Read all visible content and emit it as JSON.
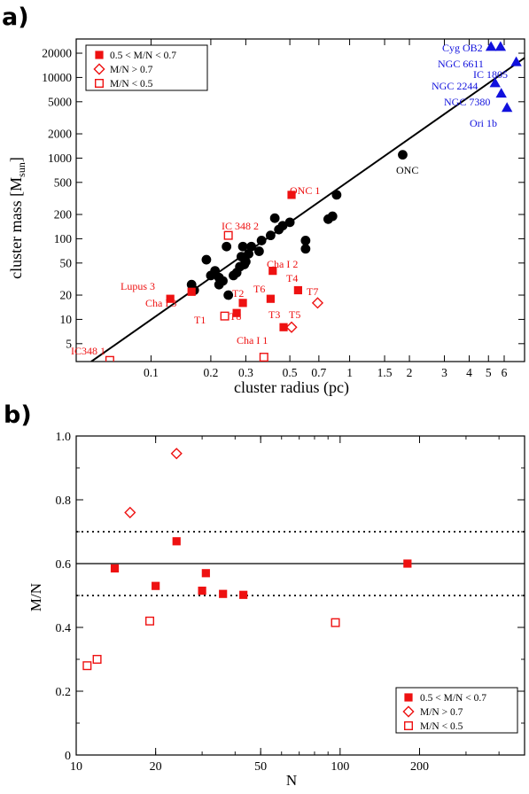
{
  "panels": {
    "a": "a)",
    "b": "b)"
  },
  "colors": {
    "red": "#ee1111",
    "blue": "#1111dd",
    "black": "#000000"
  },
  "chart_data": [
    {
      "type": "scatter",
      "panel": "a)",
      "xlabel": "cluster radius (pc)",
      "ylabel": "cluster mass [M",
      "ylabel_sub": "sun",
      "ylabel_end": "]",
      "xscale": "log",
      "yscale": "log",
      "xlim": [
        0.042,
        7.6
      ],
      "ylim": [
        3.0,
        30000
      ],
      "xticks": [
        0.1,
        0.2,
        0.3,
        0.5,
        0.7,
        1,
        1.5,
        2,
        3,
        4,
        5,
        6
      ],
      "xticklabels": [
        "0.1",
        "0.2",
        "0.3",
        "0.5",
        "0.7",
        "1",
        "1.5",
        "2",
        "3",
        "4",
        "5",
        "6"
      ],
      "yticks": [
        5,
        10,
        20,
        50,
        100,
        200,
        500,
        1000,
        2000,
        5000,
        10000,
        20000
      ],
      "yticklabels": [
        "5",
        "10",
        "20",
        "50",
        "100",
        "200",
        "500",
        "1000",
        "2000",
        "5000",
        "10000",
        "20000"
      ],
      "legend": {
        "position": "top-left",
        "entries": [
          {
            "label": "0.5 < M/N < 0.7",
            "marker": "filled-square"
          },
          {
            "label": "M/N > 0.7",
            "marker": "open-diamond"
          },
          {
            "label": "M/N < 0.5",
            "marker": "open-square"
          }
        ]
      },
      "fit_line": {
        "x": [
          0.05,
          7.6
        ],
        "y": [
          3.0,
          17500
        ]
      },
      "series": [
        {
          "marker": "filled-circle",
          "color": "black",
          "points": [
            {
              "x": 0.16,
              "y": 27
            },
            {
              "x": 0.165,
              "y": 23
            },
            {
              "x": 0.19,
              "y": 55
            },
            {
              "x": 0.2,
              "y": 35
            },
            {
              "x": 0.21,
              "y": 40
            },
            {
              "x": 0.22,
              "y": 33
            },
            {
              "x": 0.22,
              "y": 27
            },
            {
              "x": 0.23,
              "y": 30
            },
            {
              "x": 0.24,
              "y": 80
            },
            {
              "x": 0.245,
              "y": 20
            },
            {
              "x": 0.26,
              "y": 35
            },
            {
              "x": 0.27,
              "y": 38
            },
            {
              "x": 0.28,
              "y": 45
            },
            {
              "x": 0.285,
              "y": 60
            },
            {
              "x": 0.29,
              "y": 80
            },
            {
              "x": 0.295,
              "y": 48
            },
            {
              "x": 0.3,
              "y": 52
            },
            {
              "x": 0.31,
              "y": 65
            },
            {
              "x": 0.32,
              "y": 80
            },
            {
              "x": 0.35,
              "y": 70
            },
            {
              "x": 0.36,
              "y": 95
            },
            {
              "x": 0.4,
              "y": 110
            },
            {
              "x": 0.42,
              "y": 180
            },
            {
              "x": 0.44,
              "y": 130
            },
            {
              "x": 0.46,
              "y": 145
            },
            {
              "x": 0.5,
              "y": 160
            },
            {
              "x": 0.6,
              "y": 95
            },
            {
              "x": 0.6,
              "y": 75
            },
            {
              "x": 0.78,
              "y": 175
            },
            {
              "x": 0.82,
              "y": 190
            },
            {
              "x": 0.86,
              "y": 350
            },
            {
              "x": 1.85,
              "y": 1100
            }
          ]
        },
        {
          "marker": "filled-square",
          "color": "red",
          "points": [
            {
              "x": 0.125,
              "y": 18
            },
            {
              "x": 0.16,
              "y": 22
            },
            {
              "x": 0.27,
              "y": 12
            },
            {
              "x": 0.29,
              "y": 16
            },
            {
              "x": 0.4,
              "y": 18
            },
            {
              "x": 0.41,
              "y": 40
            },
            {
              "x": 0.465,
              "y": 8
            },
            {
              "x": 0.51,
              "y": 350
            },
            {
              "x": 0.55,
              "y": 23
            }
          ]
        },
        {
          "marker": "open-diamond",
          "color": "red",
          "points": [
            {
              "x": 0.51,
              "y": 8
            },
            {
              "x": 0.69,
              "y": 16
            }
          ]
        },
        {
          "marker": "open-square",
          "color": "red",
          "points": [
            {
              "x": 0.062,
              "y": 3.1
            },
            {
              "x": 0.235,
              "y": 11
            },
            {
              "x": 0.245,
              "y": 110
            },
            {
              "x": 0.37,
              "y": 3.4
            }
          ]
        },
        {
          "marker": "filled-triangle",
          "color": "blue",
          "points": [
            {
              "x": 5.15,
              "y": 24000
            },
            {
              "x": 5.75,
              "y": 24000
            },
            {
              "x": 6.9,
              "y": 15500
            },
            {
              "x": 5.4,
              "y": 8500
            },
            {
              "x": 5.8,
              "y": 6300
            },
            {
              "x": 6.2,
              "y": 4200
            }
          ]
        }
      ],
      "annotations": [
        {
          "text": "ONC",
          "color": "black"
        },
        {
          "text": "ONC 1",
          "color": "red"
        },
        {
          "text": "IC 348 2",
          "color": "red"
        },
        {
          "text": "Lupus 3",
          "color": "red"
        },
        {
          "text": "Cha I 3",
          "color": "red"
        },
        {
          "text": "Cha I 2",
          "color": "red"
        },
        {
          "text": "T1",
          "color": "red"
        },
        {
          "text": "T2",
          "color": "red"
        },
        {
          "text": "T8",
          "color": "red"
        },
        {
          "text": "T6",
          "color": "red"
        },
        {
          "text": "T4",
          "color": "red"
        },
        {
          "text": "T7",
          "color": "red"
        },
        {
          "text": "T3",
          "color": "red"
        },
        {
          "text": "T5",
          "color": "red"
        },
        {
          "text": "Cha I 1",
          "color": "red"
        },
        {
          "text": "IC348 1",
          "color": "red"
        },
        {
          "text": "Cyg OB2",
          "color": "blue"
        },
        {
          "text": "NGC 6611",
          "color": "blue"
        },
        {
          "text": "IC 1805",
          "color": "blue"
        },
        {
          "text": "NGC 2244",
          "color": "blue"
        },
        {
          "text": "NGC 7380",
          "color": "blue"
        },
        {
          "text": "Ori 1b",
          "color": "blue"
        }
      ]
    },
    {
      "type": "scatter",
      "panel": "b)",
      "xlabel": "N",
      "ylabel": "M/N",
      "xscale": "log",
      "xlim": [
        10,
        500
      ],
      "ylim": [
        0,
        1.0
      ],
      "xticks": [
        10,
        20,
        50,
        100,
        200
      ],
      "xticklabels": [
        "10",
        "20",
        "50",
        "100",
        "200"
      ],
      "yticks": [
        0,
        0.2,
        0.4,
        0.6,
        0.8,
        1.0
      ],
      "yticklabels": [
        "0",
        "0.2",
        "0.4",
        "0.6",
        "0.8",
        "1.0"
      ],
      "reference_lines": [
        {
          "y": 0.6,
          "style": "solid"
        },
        {
          "y": 0.7,
          "style": "dotted"
        },
        {
          "y": 0.5,
          "style": "dotted"
        }
      ],
      "legend": {
        "position": "bottom-right",
        "entries": [
          {
            "label": "0.5 < M/N < 0.7",
            "marker": "filled-square"
          },
          {
            "label": "M/N > 0.7",
            "marker": "open-diamond"
          },
          {
            "label": "M/N < 0.5",
            "marker": "open-square"
          }
        ]
      },
      "series": [
        {
          "marker": "filled-square",
          "color": "red",
          "points": [
            {
              "x": 14,
              "y": 0.585
            },
            {
              "x": 20,
              "y": 0.53
            },
            {
              "x": 24,
              "y": 0.67
            },
            {
              "x": 30,
              "y": 0.515
            },
            {
              "x": 31,
              "y": 0.57
            },
            {
              "x": 36,
              "y": 0.505
            },
            {
              "x": 43,
              "y": 0.502
            },
            {
              "x": 180,
              "y": 0.6
            }
          ]
        },
        {
          "marker": "open-diamond",
          "color": "red",
          "points": [
            {
              "x": 16,
              "y": 0.76
            },
            {
              "x": 24,
              "y": 0.945
            }
          ]
        },
        {
          "marker": "open-square",
          "color": "red",
          "points": [
            {
              "x": 11,
              "y": 0.28
            },
            {
              "x": 12,
              "y": 0.3
            },
            {
              "x": 19,
              "y": 0.42
            },
            {
              "x": 96,
              "y": 0.415
            }
          ]
        }
      ]
    }
  ]
}
